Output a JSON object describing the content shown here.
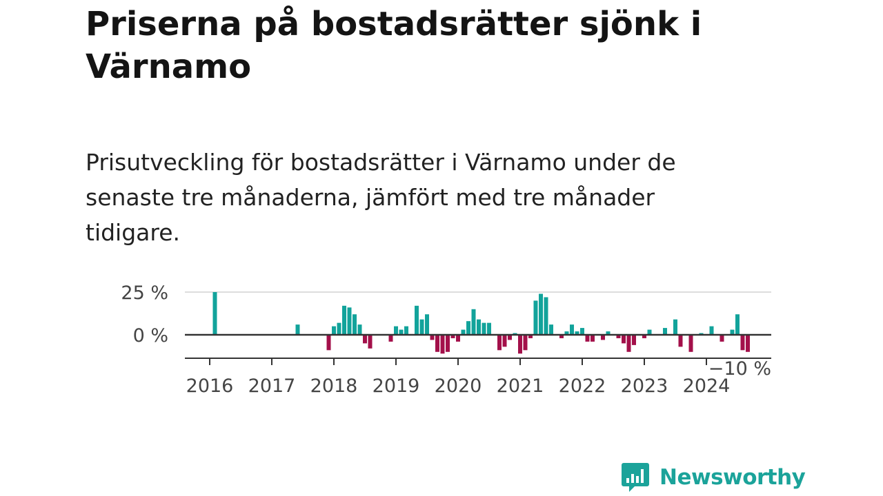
{
  "header": {
    "title": "Priserna på bostadsrätter sjönk i Värnamo",
    "subtitle": "Prisutveckling för bostadsrätter i Värnamo under de senaste tre månaderna, jämfört med tre månader tidigare."
  },
  "brand": {
    "name": "Newsworthy",
    "color": "#1ba39a"
  },
  "colors": {
    "positive": "#12a39b",
    "negative": "#a3104a",
    "gridline": "#dddddd",
    "zeroline": "#333333"
  },
  "chart_data": {
    "type": "bar",
    "title": "Priserna på bostadsrätter sjönk i Värnamo",
    "subtitle": "Prisutveckling för bostadsrätter i Värnamo under de senaste tre månaderna, jämfört med tre månader tidigare.",
    "xlabel": "",
    "ylabel": "",
    "ylim": [
      -10,
      25
    ],
    "x_range": [
      "2016-01",
      "2024-12"
    ],
    "y_ticks": [
      {
        "value": 25,
        "label": "25 %"
      },
      {
        "value": 0,
        "label": "0 %"
      },
      {
        "value": -10,
        "label": "−10 %"
      }
    ],
    "x_ticks": [
      "2016",
      "2017",
      "2018",
      "2019",
      "2020",
      "2021",
      "2022",
      "2023",
      "2024"
    ],
    "grid": true,
    "unit": "%",
    "series": [
      {
        "values": [
          {
            "x": "2016-02",
            "y": 25
          },
          {
            "x": "2017-06",
            "y": 6
          },
          {
            "x": "2017-12",
            "y": -9
          },
          {
            "x": "2018-01",
            "y": 5
          },
          {
            "x": "2018-02",
            "y": 7
          },
          {
            "x": "2018-03",
            "y": 17
          },
          {
            "x": "2018-04",
            "y": 16
          },
          {
            "x": "2018-05",
            "y": 12
          },
          {
            "x": "2018-06",
            "y": 6
          },
          {
            "x": "2018-07",
            "y": -5
          },
          {
            "x": "2018-08",
            "y": -8
          },
          {
            "x": "2018-12",
            "y": -4
          },
          {
            "x": "2019-01",
            "y": 5
          },
          {
            "x": "2019-02",
            "y": 3
          },
          {
            "x": "2019-03",
            "y": 5
          },
          {
            "x": "2019-05",
            "y": 17
          },
          {
            "x": "2019-06",
            "y": 9
          },
          {
            "x": "2019-07",
            "y": 12
          },
          {
            "x": "2019-08",
            "y": -3
          },
          {
            "x": "2019-09",
            "y": -10
          },
          {
            "x": "2019-10",
            "y": -11
          },
          {
            "x": "2019-11",
            "y": -10
          },
          {
            "x": "2019-12",
            "y": -2
          },
          {
            "x": "2020-01",
            "y": -4
          },
          {
            "x": "2020-02",
            "y": 3
          },
          {
            "x": "2020-03",
            "y": 8
          },
          {
            "x": "2020-04",
            "y": 15
          },
          {
            "x": "2020-05",
            "y": 9
          },
          {
            "x": "2020-06",
            "y": 7
          },
          {
            "x": "2020-07",
            "y": 7
          },
          {
            "x": "2020-09",
            "y": -9
          },
          {
            "x": "2020-10",
            "y": -7
          },
          {
            "x": "2020-11",
            "y": -3
          },
          {
            "x": "2020-12",
            "y": 1
          },
          {
            "x": "2021-01",
            "y": -11
          },
          {
            "x": "2021-02",
            "y": -9
          },
          {
            "x": "2021-03",
            "y": -2
          },
          {
            "x": "2021-04",
            "y": 20
          },
          {
            "x": "2021-05",
            "y": 24
          },
          {
            "x": "2021-06",
            "y": 22
          },
          {
            "x": "2021-07",
            "y": 6
          },
          {
            "x": "2021-09",
            "y": -2
          },
          {
            "x": "2021-10",
            "y": 2
          },
          {
            "x": "2021-11",
            "y": 6
          },
          {
            "x": "2021-12",
            "y": 2
          },
          {
            "x": "2022-01",
            "y": 4
          },
          {
            "x": "2022-02",
            "y": -4
          },
          {
            "x": "2022-03",
            "y": -4
          },
          {
            "x": "2022-05",
            "y": -3
          },
          {
            "x": "2022-06",
            "y": 2
          },
          {
            "x": "2022-08",
            "y": -2
          },
          {
            "x": "2022-09",
            "y": -5
          },
          {
            "x": "2022-10",
            "y": -10
          },
          {
            "x": "2022-11",
            "y": -6
          },
          {
            "x": "2023-01",
            "y": -2
          },
          {
            "x": "2023-02",
            "y": 3
          },
          {
            "x": "2023-05",
            "y": 4
          },
          {
            "x": "2023-07",
            "y": 9
          },
          {
            "x": "2023-08",
            "y": -7
          },
          {
            "x": "2023-10",
            "y": -10
          },
          {
            "x": "2023-12",
            "y": 1
          },
          {
            "x": "2024-02",
            "y": 5
          },
          {
            "x": "2024-04",
            "y": -4
          },
          {
            "x": "2024-06",
            "y": 3
          },
          {
            "x": "2024-07",
            "y": 12
          },
          {
            "x": "2024-08",
            "y": -9
          },
          {
            "x": "2024-09",
            "y": -10
          }
        ]
      }
    ]
  }
}
